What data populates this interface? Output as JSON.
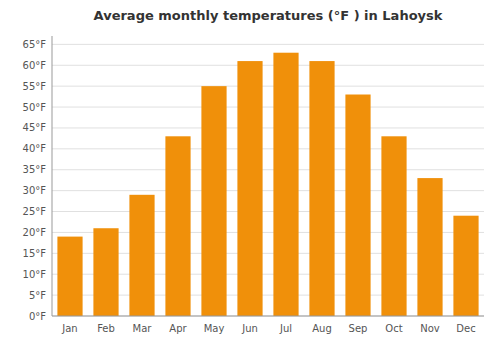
{
  "chart_data": {
    "type": "bar",
    "title": "Average monthly temperatures (°F ) in Lahoysk",
    "categories": [
      "Jan",
      "Feb",
      "Mar",
      "Apr",
      "May",
      "Jun",
      "Jul",
      "Aug",
      "Sep",
      "Oct",
      "Nov",
      "Dec"
    ],
    "values": [
      19,
      21,
      29,
      43,
      55,
      61,
      63,
      61,
      53,
      43,
      33,
      24
    ],
    "color": "#F0900A",
    "ylim": [
      0,
      67
    ],
    "yticks": [
      {
        "value": 0,
        "label": "0°F"
      },
      {
        "value": 5,
        "label": "5°F"
      },
      {
        "value": 10,
        "label": "10°F"
      },
      {
        "value": 15,
        "label": "15°F"
      },
      {
        "value": 20,
        "label": "20°F"
      },
      {
        "value": 25,
        "label": "25°F"
      },
      {
        "value": 30,
        "label": "30°F"
      },
      {
        "value": 35,
        "label": "35°F"
      },
      {
        "value": 40,
        "label": "40°F"
      },
      {
        "value": 45,
        "label": "45°F"
      },
      {
        "value": 50,
        "label": "50°F"
      },
      {
        "value": 55,
        "label": "55°F"
      },
      {
        "value": 60,
        "label": "60°F"
      },
      {
        "value": 65,
        "label": "65°F"
      }
    ],
    "grid": true
  }
}
